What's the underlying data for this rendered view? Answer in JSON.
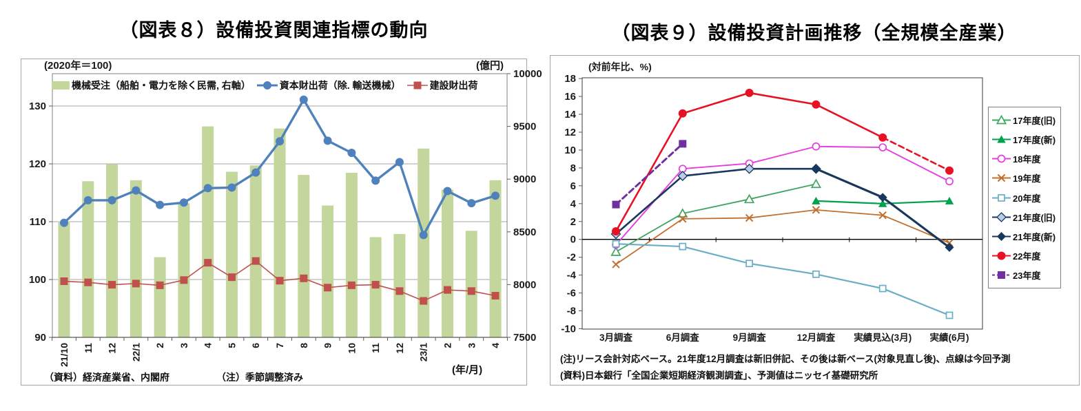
{
  "figure8": {
    "title": "（図表８）設備投資関連指標の動向",
    "index_axis_note": "(2020年＝100)",
    "value_axis_note": "(億円)",
    "x_axis_note": "(年/月)",
    "source_note": "（資料）経済産業省、内閣府",
    "adjustment_note": "（注）季節調整済み"
  },
  "figure9": {
    "title": "（図表９）設備投資計画推移（全規模全産業）",
    "axis_note": "(対前年比、%)",
    "note_line1": "(注)リース会計対応ベース。21年度12月調査は新旧併記、その後は新ベース(対象見直し後)、点線は今回予測",
    "note_line2": "(資料)日本銀行「全国企業短期経済観測調査」、予測値はニッセイ基礎研究所"
  },
  "chart_data": [
    {
      "id": "figure8",
      "type": "bar",
      "title": "（図表８）設備投資関連指標の動向",
      "categories": [
        "21/10",
        "11",
        "12",
        "22/1",
        "2",
        "3",
        "4",
        "5",
        "6",
        "7",
        "8",
        "9",
        "10",
        "11",
        "12",
        "23/1",
        "2",
        "3",
        "4"
      ],
      "left_axis": {
        "label": "(2020年＝100)",
        "min": 90,
        "max": 130,
        "ticks": [
          90,
          100,
          110,
          120,
          130
        ]
      },
      "right_axis": {
        "label": "(億円)",
        "min": 7500,
        "max": 10000,
        "ticks": [
          7500,
          8000,
          8500,
          9000,
          9500,
          10000
        ]
      },
      "xlabel": "(年/月)",
      "grid": "horizontal",
      "series": [
        {
          "name": "機械受注（船舶・電力を除く民需, 右軸）",
          "type": "bar",
          "axis": "right",
          "color": "#c3d69b",
          "values": [
            8600,
            8980,
            9140,
            8990,
            8260,
            8770,
            9500,
            9070,
            9130,
            9480,
            9040,
            8750,
            9060,
            8450,
            8480,
            9290,
            8900,
            8510,
            8990
          ]
        },
        {
          "name": "資本財出荷（除. 輸送機械）",
          "type": "line",
          "axis": "left",
          "color": "#4f81bd",
          "marker": "circle-filled",
          "width": 3.4,
          "values": [
            109.8,
            113.7,
            113.7,
            115.4,
            112.9,
            113.3,
            115.8,
            115.9,
            118.5,
            123.9,
            131.1,
            124.0,
            121.9,
            117.1,
            120.3,
            107.7,
            115.3,
            113.2,
            114.5
          ]
        },
        {
          "name": "建設財出荷",
          "type": "line",
          "axis": "left",
          "color": "#c0504d",
          "marker": "square-filled",
          "width": 1.6,
          "values": [
            99.7,
            99.5,
            99.1,
            99.3,
            99.0,
            99.9,
            102.9,
            100.4,
            103.2,
            99.8,
            100.2,
            98.6,
            99.0,
            99.1,
            98.0,
            96.3,
            98.2,
            98.0,
            97.2
          ]
        }
      ]
    },
    {
      "id": "figure9",
      "type": "line",
      "title": "（図表９）設備投資計画推移（全規模全産業）",
      "categories": [
        "3月調査",
        "6月調査",
        "9月調査",
        "12月調査",
        "実績見込(3月)",
        "実績(6月)"
      ],
      "y_axis": {
        "label": "(対前年比、%)",
        "min": -10,
        "max": 18,
        "step": 2,
        "negative_label_color": "#e00000"
      },
      "grid": "zero-line-only",
      "legend_position": "right",
      "series": [
        {
          "name": "17年度(旧)",
          "color": "#3fa45f",
          "marker": "triangle-open",
          "width": 1.8,
          "values": [
            -1.4,
            2.9,
            4.5,
            6.2,
            null,
            null
          ]
        },
        {
          "name": "17年度(新)",
          "color": "#00a14b",
          "marker": "triangle-filled",
          "width": 2.2,
          "values": [
            null,
            null,
            null,
            4.3,
            4.0,
            4.3
          ]
        },
        {
          "name": "18年度",
          "color": "#e53ce1",
          "marker": "circle-open",
          "width": 1.9,
          "values": [
            -0.6,
            7.9,
            8.5,
            10.4,
            10.3,
            6.5
          ]
        },
        {
          "name": "19年度",
          "color": "#c0702f",
          "marker": "x",
          "width": 1.8,
          "values": [
            -2.8,
            2.3,
            2.4,
            3.3,
            2.7,
            -0.4
          ]
        },
        {
          "name": "20年度",
          "color": "#69aec8",
          "marker": "square-open",
          "width": 2.2,
          "values": [
            -0.5,
            -0.8,
            -2.7,
            -3.9,
            -5.5,
            -8.5
          ]
        },
        {
          "name": "21年度(旧)",
          "color": "#17375d",
          "marker": "diamond-light",
          "marker_fill": "#b9cde5",
          "width": 2.6,
          "values": [
            0.6,
            7.1,
            7.9,
            7.9,
            null,
            null
          ]
        },
        {
          "name": "21年度(新)",
          "color": "#17375d",
          "marker": "diamond-filled",
          "width": 3.2,
          "values": [
            null,
            null,
            null,
            7.9,
            4.7,
            -0.9
          ]
        },
        {
          "name": "22年度",
          "color": "#e81123",
          "marker": "circle-filled",
          "width": 2.6,
          "dash_from": 4,
          "values": [
            0.9,
            14.1,
            16.4,
            15.1,
            11.4,
            7.7
          ]
        },
        {
          "name": "23年度",
          "color": "#7030a0",
          "marker": "square-filled",
          "width": 3.0,
          "dashed": true,
          "values": [
            3.9,
            10.7,
            null,
            null,
            null,
            null
          ]
        }
      ]
    }
  ]
}
